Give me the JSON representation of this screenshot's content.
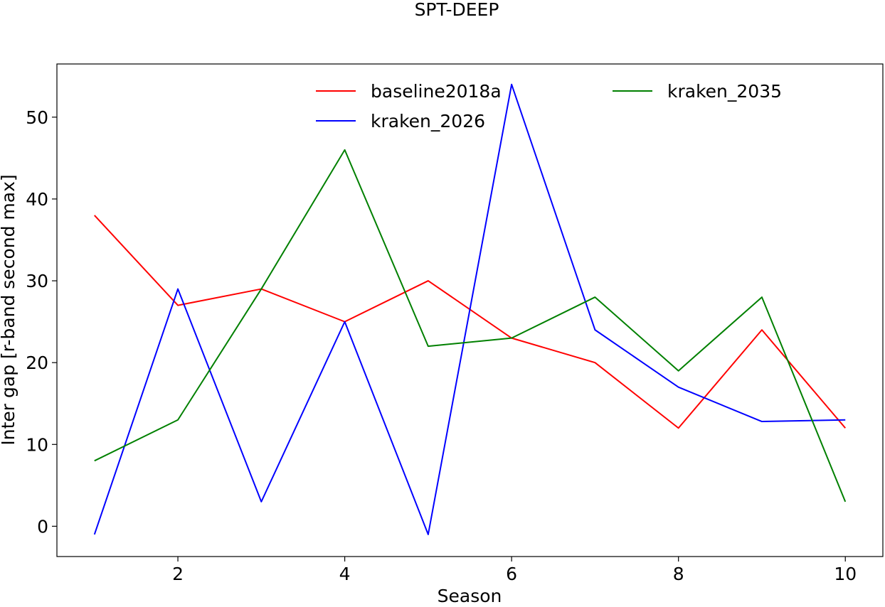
{
  "chart_data": {
    "type": "line",
    "title": "SPT-DEEP",
    "xlabel": "Season",
    "ylabel": "Inter gap [r-band second max]",
    "xlim": [
      0.55,
      10.45
    ],
    "ylim": [
      -3.7,
      56.5
    ],
    "xticks": [
      2,
      4,
      6,
      8,
      10
    ],
    "yticks": [
      0,
      10,
      20,
      30,
      40,
      50
    ],
    "grid": false,
    "legend_position": "top-center",
    "x": [
      1,
      2,
      3,
      4,
      5,
      6,
      7,
      8,
      9,
      10
    ],
    "series": [
      {
        "name": "baseline2018a",
        "color": "#ff0000",
        "values": [
          38,
          27,
          29,
          25,
          30,
          23,
          20,
          12,
          24,
          12
        ]
      },
      {
        "name": "kraken_2026",
        "color": "#0000ff",
        "values": [
          -1,
          29,
          3,
          25,
          -1,
          54,
          24,
          17,
          12.8,
          13
        ]
      },
      {
        "name": "kraken_2035",
        "color": "#008000",
        "values": [
          8,
          13,
          29,
          46,
          22,
          23,
          28,
          19,
          28,
          3
        ]
      }
    ]
  }
}
